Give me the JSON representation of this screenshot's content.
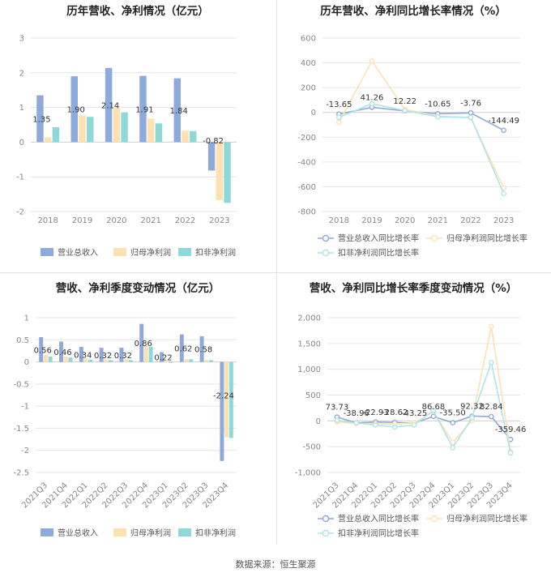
{
  "source": "数据来源：恒生聚源",
  "colors": {
    "revenue": "#8eaadb",
    "net_profit": "#fde1b0",
    "deducted_profit": "#8ed8d8",
    "revenue_line": "#8eaadb",
    "net_line": "#fde1b0",
    "deducted_line": "#aee4ec",
    "axis_text": "#888888",
    "grid": "#e5e5e5",
    "title": "#222222"
  },
  "chart_data": [
    {
      "id": "annual-bar",
      "type": "bar",
      "title": "历年营收、净利情况（亿元）",
      "categories": [
        "2018",
        "2019",
        "2020",
        "2021",
        "2022",
        "2023"
      ],
      "ylim": [
        -2,
        3
      ],
      "yticks": [
        "-2",
        "-1",
        "0",
        "1",
        "2",
        "3"
      ],
      "series": [
        {
          "name": "营业总收入",
          "values": [
            1.35,
            1.9,
            2.14,
            1.91,
            1.84,
            -0.82
          ]
        },
        {
          "name": "归母净利润",
          "values": [
            0.14,
            0.77,
            0.98,
            0.68,
            0.33,
            -1.67
          ]
        },
        {
          "name": "扣非净利润",
          "values": [
            0.43,
            0.73,
            0.86,
            0.54,
            0.32,
            -1.75
          ]
        }
      ],
      "data_labels": [
        "1.35",
        "1.90",
        "2.14",
        "1.91",
        "1.84",
        "-0.82"
      ],
      "legend": "bottom"
    },
    {
      "id": "annual-line",
      "type": "line",
      "title": "历年营收、净利同比增长率情况（%）",
      "categories": [
        "2018",
        "2019",
        "2020",
        "2021",
        "2022",
        "2023"
      ],
      "ylim": [
        -800,
        600
      ],
      "yticks": [
        "-800",
        "-600",
        "-400",
        "-200",
        "0",
        "200",
        "400",
        "600"
      ],
      "series": [
        {
          "name": "营业总收入同比增长率",
          "values": [
            -13.65,
            41.26,
            12.22,
            -10.65,
            -3.76,
            -144.49
          ]
        },
        {
          "name": "归母净利润同比增长率",
          "values": [
            -80,
            415,
            25,
            -30,
            -45,
            -610
          ]
        },
        {
          "name": "扣非净利润同比增长率",
          "values": [
            -40,
            70,
            15,
            -35,
            -40,
            -655
          ]
        }
      ],
      "data_labels": [
        "-13.65",
        "41.26",
        "12.22",
        "-10.65",
        "-3.76",
        "-144.49"
      ],
      "legend": "bottom"
    },
    {
      "id": "quarter-bar",
      "type": "bar",
      "title": "营收、净利季度变动情况（亿元）",
      "categories": [
        "2021Q3",
        "2021Q4",
        "2022Q1",
        "2022Q2",
        "2022Q3",
        "2022Q4",
        "2023Q1",
        "2023Q2",
        "2023Q3",
        "2023Q4"
      ],
      "ylim": [
        -2.5,
        1
      ],
      "yticks": [
        "-2.5",
        "-2",
        "-1.5",
        "-1",
        "-0.5",
        "0",
        "0.5",
        "1"
      ],
      "series": [
        {
          "name": "营业总收入",
          "values": [
            0.56,
            0.46,
            0.34,
            0.32,
            0.32,
            0.86,
            0.22,
            0.62,
            0.58,
            -2.24
          ]
        },
        {
          "name": "归母净利润",
          "values": [
            0.16,
            0.12,
            0.08,
            0.06,
            0.06,
            0.36,
            0.02,
            0.07,
            0.05,
            -1.7
          ]
        },
        {
          "name": "扣非净利润",
          "values": [
            0.12,
            0.1,
            0.05,
            0.04,
            0.04,
            0.34,
            -0.02,
            0.06,
            0.04,
            -1.72
          ]
        }
      ],
      "data_labels": [
        "0.56",
        "0.46",
        "0.34",
        "0.32",
        "0.32",
        "0.86",
        "0.22",
        "0.62",
        "0.58",
        "-2.24"
      ],
      "legend": "bottom"
    },
    {
      "id": "quarter-line",
      "type": "line",
      "title": "营收、净利同比增长率季度变动情况（%）",
      "categories": [
        "2021Q3",
        "2021Q4",
        "2022Q1",
        "2022Q2",
        "2022Q3",
        "2022Q4",
        "2023Q1",
        "2023Q2",
        "2023Q3",
        "2023Q4"
      ],
      "ylim": [
        -1000,
        2000
      ],
      "yticks": [
        "-1,000",
        "-500",
        "0",
        "500",
        "1,000",
        "1,500",
        "2,000"
      ],
      "series": [
        {
          "name": "营业总收入同比增长率",
          "values": [
            73.73,
            -38.96,
            -22.93,
            -28.62,
            -43.25,
            86.68,
            -35.5,
            92.32,
            82.84,
            -359.46
          ]
        },
        {
          "name": "归母净利润同比增长率",
          "values": [
            -20,
            -50,
            -60,
            -60,
            -40,
            180,
            -420,
            10,
            1830,
            -600
          ]
        },
        {
          "name": "扣非净利润同比增长率",
          "values": [
            10,
            -40,
            -80,
            -120,
            -80,
            200,
            -520,
            60,
            1130,
            -620
          ]
        }
      ],
      "data_labels": [
        "73.73",
        "-38.96",
        "-22.93",
        "-28.62",
        "-43.25",
        "86.68",
        "-35.50",
        "92.32",
        "82.84",
        "-359.46"
      ],
      "legend": "bottom"
    }
  ]
}
